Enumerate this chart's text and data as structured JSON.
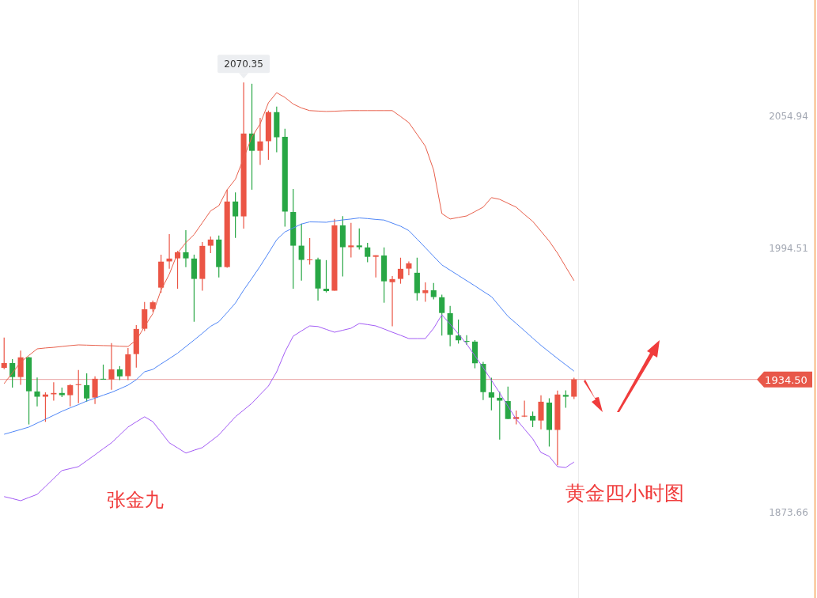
{
  "chart_data": {
    "type": "candlestick",
    "title": "黄金四小时图",
    "categories": [
      null,
      null,
      null,
      null,
      null,
      null,
      null,
      null,
      null,
      null,
      null,
      null,
      null,
      null,
      null,
      null,
      null,
      null,
      null,
      null,
      null,
      null,
      null,
      null,
      null,
      null,
      null,
      null,
      null,
      null,
      null,
      null,
      null,
      null,
      null,
      null,
      null,
      null,
      null,
      null,
      null,
      null,
      null,
      null,
      null,
      null,
      null,
      null,
      null,
      null,
      null,
      null,
      null,
      null,
      null,
      null,
      null,
      null,
      null,
      null,
      null,
      null,
      null,
      null,
      null,
      null,
      null,
      null,
      null,
      null
    ],
    "ohlc": [
      [
        1939.8,
        1953.7,
        1939.2,
        1942.0
      ],
      [
        1942.0,
        1943.8,
        1930.8,
        1935.6
      ],
      [
        1935.6,
        1947.7,
        1932.0,
        1944.6
      ],
      [
        1944.6,
        1944.9,
        1913.9,
        1929.1
      ],
      [
        1929.0,
        1935.4,
        1922.2,
        1926.6
      ],
      [
        1926.6,
        1928.6,
        1915.1,
        1927.6
      ],
      [
        1927.7,
        1933.2,
        1924.8,
        1928.3
      ],
      [
        1928.3,
        1930.8,
        1926.4,
        1927.3
      ],
      [
        1927.3,
        1932.3,
        1922.2,
        1931.9
      ],
      [
        1931.9,
        1938.8,
        1923.6,
        1932.3
      ],
      [
        1931.9,
        1937.3,
        1924.3,
        1925.8
      ],
      [
        1926.2,
        1935.9,
        1923.3,
        1934.8
      ],
      [
        1934.8,
        1941.3,
        1934.4,
        1934.4
      ],
      [
        1934.5,
        1951.1,
        1929.8,
        1939.1
      ],
      [
        1939.1,
        1940.6,
        1934.2,
        1935.9
      ],
      [
        1936.0,
        1948.9,
        1934.2,
        1946.0
      ],
      [
        1946.1,
        1959.4,
        1939.9,
        1957.6
      ],
      [
        1957.7,
        1969.9,
        1956.6,
        1966.6
      ],
      [
        1966.7,
        1970.6,
        1965.5,
        1969.8
      ],
      [
        1976.5,
        1991.6,
        1974.2,
        1988.4
      ],
      [
        1988.5,
        2001.0,
        1985.1,
        1989.8
      ],
      [
        1989.9,
        1993.3,
        1976.0,
        1992.7
      ],
      [
        1992.7,
        2002.8,
        1985.9,
        1989.9
      ],
      [
        1989.8,
        1991.6,
        1960.9,
        1980.5
      ],
      [
        1980.5,
        1997.4,
        1975.1,
        1995.6
      ],
      [
        1995.7,
        1999.9,
        1992.3,
        1998.5
      ],
      [
        1998.5,
        2000.3,
        1981.2,
        1985.9
      ],
      [
        1985.9,
        2021.3,
        1985.6,
        2015.9
      ],
      [
        2015.9,
        2020.1,
        1999.3,
        2009.1
      ],
      [
        2009.1,
        2070.35,
        2003.5,
        2047.0
      ],
      [
        2047.0,
        2069.8,
        2021.3,
        2039.1
      ],
      [
        2039.1,
        2054.2,
        2032.6,
        2043.4
      ],
      [
        2043.5,
        2057.5,
        2035.0,
        2056.8
      ],
      [
        2056.8,
        2059.3,
        2038.4,
        2045.3
      ],
      [
        2045.5,
        2049.2,
        2004.4,
        2011.3
      ],
      [
        2011.1,
        2021.6,
        1976.0,
        1995.7
      ],
      [
        1995.7,
        2005.8,
        1979.7,
        1989.2
      ],
      [
        1989.2,
        1999.2,
        1987.0,
        1989.4
      ],
      [
        1989.4,
        1990.2,
        1970.6,
        1976.1
      ],
      [
        1976.0,
        1989.1,
        1974.3,
        1974.9
      ],
      [
        1975.1,
        2007.9,
        1975.1,
        2005.0
      ],
      [
        2005.0,
        2009.2,
        1981.6,
        1995.0
      ],
      [
        1995.0,
        2006.1,
        1990.3,
        1995.8
      ],
      [
        1995.8,
        2003.6,
        1993.9,
        1995.0
      ],
      [
        1994.9,
        1997.0,
        1988.1,
        1990.6
      ],
      [
        1990.6,
        1991.3,
        1981.2,
        1991.3
      ],
      [
        1991.2,
        1994.9,
        1969.6,
        1979.4
      ],
      [
        1979.0,
        1981.8,
        1958.8,
        1980.4
      ],
      [
        1980.5,
        1990.2,
        1978.3,
        1985.1
      ],
      [
        1985.2,
        1988.5,
        1982.2,
        1987.6
      ],
      [
        1983.3,
        1990.2,
        1970.6,
        1974.0
      ],
      [
        1974.0,
        1978.9,
        1970.0,
        1975.3
      ],
      [
        1975.3,
        1978.6,
        1971.1,
        1972.2
      ],
      [
        1972.1,
        1973.3,
        1954.6,
        1964.9
      ],
      [
        1964.8,
        1968.1,
        1949.7,
        1954.9
      ],
      [
        1954.6,
        1961.9,
        1950.9,
        1952.4
      ],
      [
        1952.1,
        1954.7,
        1950.3,
        1951.9
      ],
      [
        1951.8,
        1952.5,
        1939.6,
        1941.9
      ],
      [
        1941.6,
        1942.5,
        1925.1,
        1928.7
      ],
      [
        1928.6,
        1935.3,
        1920.4,
        1926.2
      ],
      [
        1926.1,
        1929.0,
        1907.0,
        1924.8
      ],
      [
        1924.6,
        1931.2,
        1916.4,
        1916.4
      ],
      [
        1916.4,
        1920.3,
        1913.9,
        1917.3
      ],
      [
        1917.5,
        1924.8,
        1917.3,
        1917.9
      ],
      [
        1917.8,
        1919.8,
        1912.7,
        1915.7
      ],
      [
        1915.7,
        1927.2,
        1911.7,
        1924.3
      ],
      [
        1923.9,
        1925.9,
        1903.8,
        1911.4
      ],
      [
        1911.4,
        1929.4,
        1895.2,
        1927.6
      ],
      [
        1927.4,
        1929.5,
        1921.5,
        1926.6
      ],
      [
        1926.6,
        1935.3,
        1925.5,
        1934.5
      ]
    ],
    "colors": [
      "#eb5545",
      "#28a745",
      "#eb5545",
      "#28a745",
      "#28a745",
      "#eb5545",
      "#eb5545",
      "#28a745",
      "#eb5545",
      "#eb5545",
      "#28a745",
      "#eb5545",
      "#28a745",
      "#eb5545",
      "#28a745",
      "#eb5545",
      "#eb5545",
      "#eb5545",
      "#eb5545",
      "#eb5545",
      "#eb5545",
      "#eb5545",
      "#28a745",
      "#28a745",
      "#eb5545",
      "#eb5545",
      "#28a745",
      "#eb5545",
      "#28a745",
      "#eb5545",
      "#28a745",
      "#eb5545",
      "#eb5545",
      "#28a745",
      "#28a745",
      "#28a745",
      "#28a745",
      "#eb5545",
      "#28a745",
      "#28a745",
      "#eb5545",
      "#28a745",
      "#eb5545",
      "#28a745",
      "#28a745",
      "#eb5545",
      "#28a745",
      "#eb5545",
      "#eb5545",
      "#eb5545",
      "#28a745",
      "#eb5545",
      "#28a745",
      "#28a745",
      "#28a745",
      "#28a745",
      "#28a745",
      "#28a745",
      "#28a745",
      "#28a745",
      "#28a745",
      "#28a745",
      "#eb5545",
      "#eb5545",
      "#28a745",
      "#eb5545",
      "#28a745",
      "#eb5545",
      "#28a745",
      "#eb5545"
    ],
    "series": [
      {
        "type": "line",
        "color": "#e8604c",
        "values": [
          1932.6,
          1937.5,
          1942.4,
          1945.5,
          1948.5,
          1948.9,
          1949.2,
          1949.6,
          1950.0,
          1950.3,
          1950.2,
          1950.1,
          1950.0,
          1949.9,
          1949.7,
          1949.6,
          1952.5,
          1958.7,
          1964.6,
          1975.4,
          1982.7,
          1992.3,
          1997.1,
          2000.8,
          2006.2,
          2011.6,
          2014.0,
          2021.3,
          2026.1,
          2035.8,
          2045.4,
          2051.4,
          2061.1,
          2065.7,
          2063.5,
          2060.5,
          2058.7,
          2057.5,
          2057.3,
          2057.1,
          2057.2,
          2057.4,
          2057.5,
          2057.5,
          2057.5,
          2057.5,
          2057.5,
          2057.5,
          2054.8,
          2052.0,
          2046.6,
          2041.2,
          2030.3,
          2010.4,
          2007.9,
          2008.6,
          2009.3,
          2011.3,
          2013.3,
          2017.7,
          2016.9,
          2015.1,
          2013.3,
          2010.0,
          2006.8,
          2002.3,
          1997.8,
          1992.3,
          1986.0,
          1979.7
        ]
      },
      {
        "type": "line",
        "color": "#4f86f7",
        "values": [
          1909.4,
          1910.5,
          1911.6,
          1912.7,
          1914.5,
          1916.3,
          1918.1,
          1919.9,
          1921.5,
          1923.0,
          1924.6,
          1925.9,
          1927.3,
          1928.6,
          1930.2,
          1931.9,
          1934.4,
          1938.0,
          1939.1,
          1941.6,
          1944.0,
          1946.5,
          1949.5,
          1952.5,
          1955.6,
          1958.8,
          1960.9,
          1965.1,
          1969.4,
          1975.4,
          1980.8,
          1986.3,
          1992.3,
          1998.4,
          2002.0,
          2003.8,
          2005.6,
          2006.6,
          2006.5,
          2006.4,
          2007.0,
          2007.5,
          2007.9,
          2008.4,
          2008.1,
          2007.7,
          2007.4,
          2006.0,
          2004.6,
          2002.6,
          1998.7,
          1994.8,
          1990.8,
          1986.9,
          1984.5,
          1982.1,
          1979.7,
          1977.3,
          1974.8,
          1972.4,
          1967.9,
          1963.4,
          1960.1,
          1956.8,
          1953.4,
          1950.1,
          1947.1,
          1944.1,
          1941.2,
          1938.3
        ]
      },
      {
        "type": "line",
        "color": "#a35cf5",
        "values": [
          1880.9,
          1880.0,
          1879.0,
          1880.5,
          1881.9,
          1885.5,
          1889.2,
          1892.8,
          1893.7,
          1894.6,
          1897.3,
          1900.0,
          1902.8,
          1905.5,
          1909.1,
          1912.7,
          1915.1,
          1917.4,
          1915.2,
          1910.4,
          1905.5,
          1903.2,
          1900.8,
          1902.1,
          1903.3,
          1906.2,
          1909.1,
          1913.3,
          1917.4,
          1920.5,
          1923.6,
          1927.6,
          1931.5,
          1938.0,
          1947.1,
          1954.3,
          1956.7,
          1959.0,
          1958.7,
          1957.4,
          1956.1,
          1957.0,
          1957.9,
          1960.1,
          1959.6,
          1959.0,
          1957.6,
          1956.1,
          1954.7,
          1953.2,
          1953.2,
          1953.2,
          1957.9,
          1964.1,
          1959.8,
          1955.3,
          1950.7,
          1945.3,
          1939.9,
          1934.1,
          1928.3,
          1922.3,
          1916.3,
          1911.8,
          1907.3,
          1901.1,
          1899.3,
          1894.6,
          1894.2,
          1896.7
        ]
      }
    ],
    "ylim": [
      1834.5,
      2108.1
    ],
    "yticks": [
      2054.94,
      1994.51,
      1873.66
    ],
    "tick_labels": "y",
    "ref_lines": [
      {
        "axis": "y",
        "value": 1934.5,
        "label": "1934.50",
        "color": "#e8a0a0"
      }
    ],
    "annotations": [
      "张金九",
      "2070.35"
    ]
  }
}
